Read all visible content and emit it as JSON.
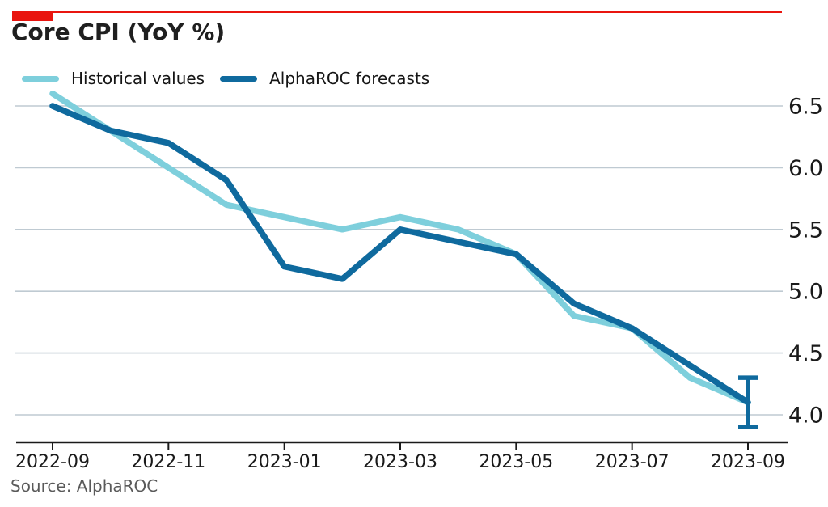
{
  "header": {
    "title": "Core CPI (YoY %)",
    "accent_color": "#e9150f"
  },
  "legend": {
    "items": [
      {
        "label": "Historical values",
        "color": "#7ecfdc"
      },
      {
        "label": "AlphaROC forecasts",
        "color": "#0f6a9e"
      }
    ]
  },
  "footer": {
    "source": "Source: AlphaROC"
  },
  "chart_data": {
    "type": "line",
    "title": "Core CPI (YoY %)",
    "x": [
      "2022-09",
      "2022-10",
      "2022-11",
      "2022-12",
      "2023-01",
      "2023-02",
      "2023-03",
      "2023-04",
      "2023-05",
      "2023-06",
      "2023-07",
      "2023-08",
      "2023-09"
    ],
    "series": [
      {
        "name": "Historical values",
        "color": "#7ecfdc",
        "values": [
          6.6,
          6.3,
          6.0,
          5.7,
          5.6,
          5.5,
          5.6,
          5.5,
          5.3,
          4.8,
          4.7,
          4.3,
          4.1
        ]
      },
      {
        "name": "AlphaROC forecasts",
        "color": "#0f6a9e",
        "values": [
          6.5,
          6.3,
          6.2,
          5.9,
          5.2,
          5.1,
          5.5,
          5.4,
          5.3,
          4.9,
          4.7,
          4.4,
          4.1
        ]
      }
    ],
    "error_bar": {
      "x": "2023-09",
      "series": "AlphaROC forecasts",
      "low": 3.9,
      "high": 4.3
    },
    "yticks": [
      4.0,
      4.5,
      5.0,
      5.5,
      6.0,
      6.5
    ],
    "ytick_labels": [
      "4.0",
      "4.5",
      "5.0",
      "5.5",
      "6.0",
      "6.5"
    ],
    "xticks": [
      "2022-09",
      "2022-11",
      "2023-01",
      "2023-03",
      "2023-05",
      "2023-07",
      "2023-09"
    ],
    "ylim": [
      3.78,
      6.78
    ],
    "xlabel": "",
    "ylabel": "",
    "grid": true,
    "legend_position": "top-left",
    "gridline_color": "#bfcad2",
    "axis_color": "#1a1a1a",
    "tick_text_color": "#1a1a1a"
  }
}
